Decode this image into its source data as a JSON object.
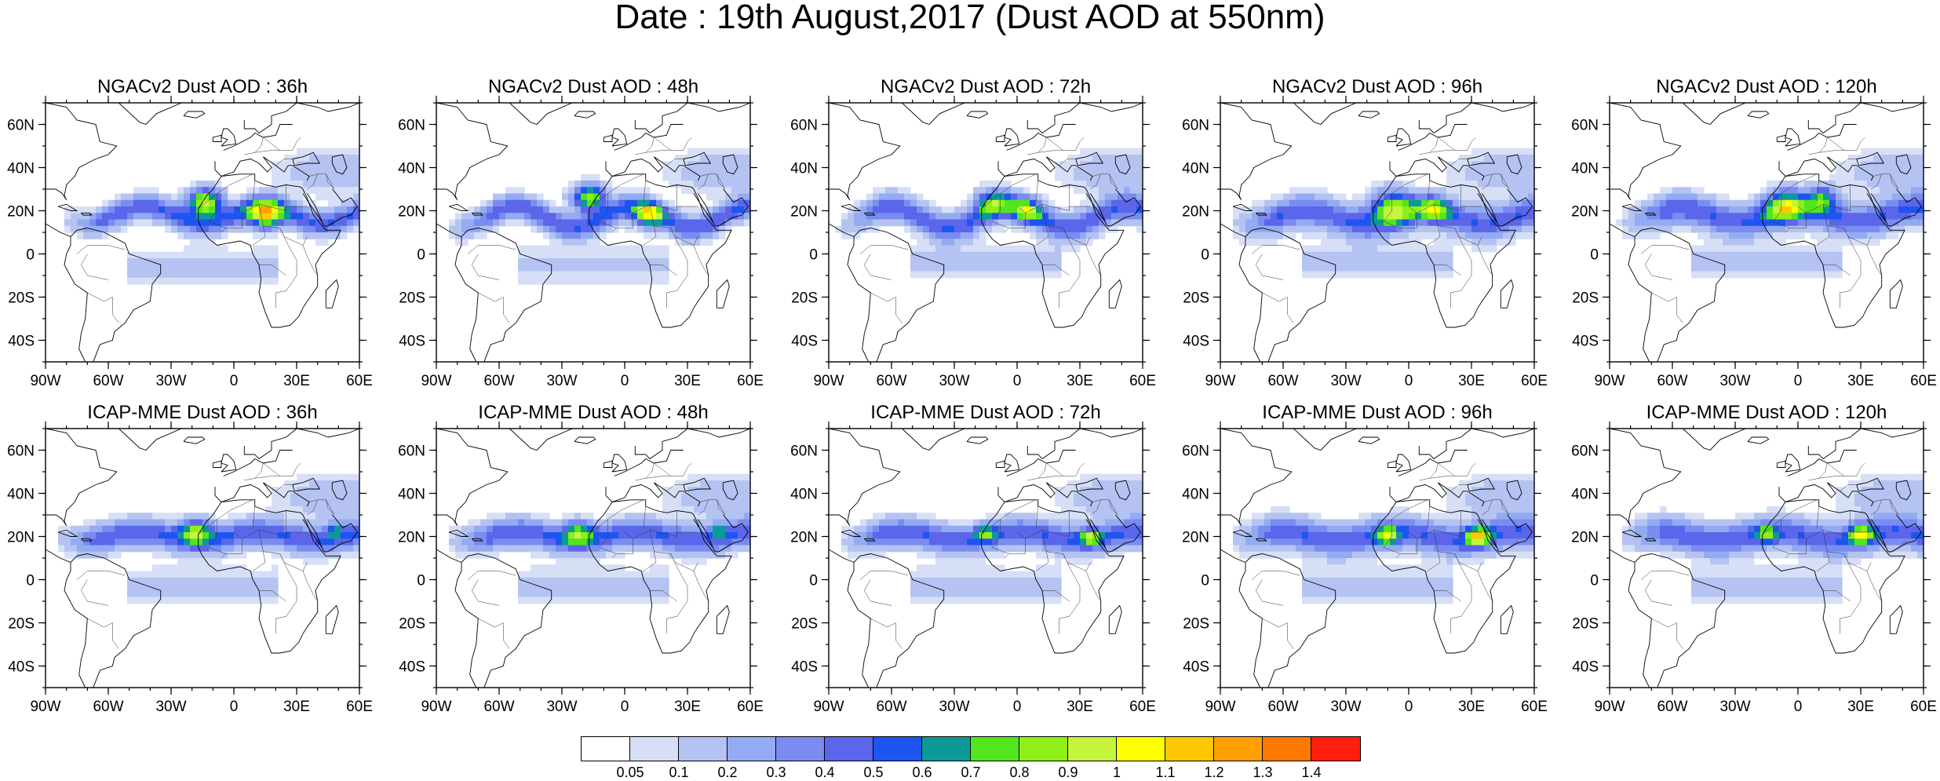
{
  "title": "Date : 19th August,2017 (Dust AOD at 550nm)",
  "map": {
    "lon_range": [
      -90,
      60
    ],
    "lat_range": [
      -50,
      70
    ],
    "x_ticks": [
      {
        "lon": -90,
        "label": "90W"
      },
      {
        "lon": -60,
        "label": "60W"
      },
      {
        "lon": -30,
        "label": "30W"
      },
      {
        "lon": 0,
        "label": "0"
      },
      {
        "lon": 30,
        "label": "30E"
      },
      {
        "lon": 60,
        "label": "60E"
      }
    ],
    "y_ticks": [
      {
        "lat": 60,
        "label": "60N"
      },
      {
        "lat": 40,
        "label": "40N"
      },
      {
        "lat": 20,
        "label": "20N"
      },
      {
        "lat": 0,
        "label": "0"
      },
      {
        "lat": -20,
        "label": "20S"
      },
      {
        "lat": -40,
        "label": "40S"
      }
    ],
    "field": "Dust AOD",
    "wavelength": "550nm",
    "projection": "cylindrical equidistant"
  },
  "panels": [
    {
      "title": "NGACv2 Dust AOD : 36h",
      "model": "NGACv2",
      "forecast_hour": 36,
      "row": 0,
      "col": 0,
      "band": {
        "lat": 18,
        "amp": 4,
        "width": 14,
        "phase": 0,
        "lon_start": -85
      },
      "south": 6,
      "hotspots": [
        {
          "lon": -14,
          "lat": 24,
          "r": 10,
          "level": 1.4
        },
        {
          "lon": 15,
          "lat": 18,
          "r": 10,
          "level": 1.4
        }
      ]
    },
    {
      "title": "NGACv2 Dust AOD : 48h",
      "model": "NGACv2",
      "forecast_hour": 48,
      "row": 0,
      "col": 1,
      "band": {
        "lat": 17,
        "amp": 5,
        "width": 14,
        "phase": 1.1,
        "lon_start": -88
      },
      "south": 5,
      "hotspots": [
        {
          "lon": -17,
          "lat": 26,
          "r": 10,
          "level": 1.3
        },
        {
          "lon": 11,
          "lat": 18,
          "r": 9,
          "level": 1.2
        }
      ]
    },
    {
      "title": "NGACv2 Dust AOD : 72h",
      "model": "NGACv2",
      "forecast_hour": 72,
      "row": 0,
      "col": 2,
      "band": {
        "lat": 17,
        "amp": 5,
        "width": 16,
        "phase": 2.0,
        "lon_start": -88
      },
      "south": 4,
      "hotspots": [
        {
          "lon": -12,
          "lat": 24,
          "r": 10,
          "level": 1.0
        },
        {
          "lon": 5,
          "lat": 20,
          "r": 9,
          "level": 1.0
        }
      ]
    },
    {
      "title": "NGACv2 Dust AOD : 96h",
      "model": "NGACv2",
      "forecast_hour": 96,
      "row": 0,
      "col": 3,
      "band": {
        "lat": 17,
        "amp": 3,
        "width": 18,
        "phase": 0.7,
        "lon_start": -88
      },
      "south": 4,
      "hotspots": [
        {
          "lon": -8,
          "lat": 22,
          "r": 13,
          "level": 1.1
        },
        {
          "lon": 12,
          "lat": 21,
          "r": 9,
          "level": 1.0
        }
      ]
    },
    {
      "title": "NGACv2 Dust AOD : 120h",
      "model": "NGACv2",
      "forecast_hour": 120,
      "row": 0,
      "col": 4,
      "band": {
        "lat": 18,
        "amp": 3,
        "width": 18,
        "phase": 1.5,
        "lon_start": -88
      },
      "south": 4,
      "hotspots": [
        {
          "lon": -6,
          "lat": 22,
          "r": 12,
          "level": 1.1
        },
        {
          "lon": 12,
          "lat": 26,
          "r": 9,
          "level": 1.0
        }
      ]
    },
    {
      "title": "ICAP-MME Dust AOD : 36h",
      "model": "ICAP-MME",
      "forecast_hour": 36,
      "row": 1,
      "col": 0,
      "band": {
        "lat": 20,
        "amp": 2,
        "width": 16,
        "phase": 0.3,
        "lon_start": -88
      },
      "south": 3,
      "hotspots": [
        {
          "lon": -18,
          "lat": 23,
          "r": 9,
          "level": 1.1
        },
        {
          "lon": 48,
          "lat": 23,
          "r": 5,
          "level": 0.8
        }
      ]
    },
    {
      "title": "ICAP-MME Dust AOD : 48h",
      "model": "ICAP-MME",
      "forecast_hour": 48,
      "row": 1,
      "col": 1,
      "band": {
        "lat": 20,
        "amp": 2,
        "width": 16,
        "phase": 0.9,
        "lon_start": -88
      },
      "south": 3,
      "hotspots": [
        {
          "lon": -22,
          "lat": 22,
          "r": 9,
          "level": 1.0
        },
        {
          "lon": 45,
          "lat": 23,
          "r": 5,
          "level": 0.8
        }
      ]
    },
    {
      "title": "ICAP-MME Dust AOD : 72h",
      "model": "ICAP-MME",
      "forecast_hour": 72,
      "row": 1,
      "col": 2,
      "band": {
        "lat": 20,
        "amp": 2,
        "width": 16,
        "phase": 1.4,
        "lon_start": -88
      },
      "south": 3,
      "hotspots": [
        {
          "lon": -15,
          "lat": 22,
          "r": 6,
          "level": 0.9
        },
        {
          "lon": 35,
          "lat": 20,
          "r": 6,
          "level": 1.0
        }
      ]
    },
    {
      "title": "ICAP-MME Dust AOD : 96h",
      "model": "ICAP-MME",
      "forecast_hour": 96,
      "row": 1,
      "col": 3,
      "band": {
        "lat": 20,
        "amp": 2,
        "width": 18,
        "phase": 2.1,
        "lon_start": -88
      },
      "south": 3,
      "hotspots": [
        {
          "lon": -10,
          "lat": 20,
          "r": 7,
          "level": 1.0
        },
        {
          "lon": 33,
          "lat": 20,
          "r": 7,
          "level": 1.2
        }
      ]
    },
    {
      "title": "ICAP-MME Dust AOD : 120h",
      "model": "ICAP-MME",
      "forecast_hour": 120,
      "row": 1,
      "col": 4,
      "band": {
        "lat": 20,
        "amp": 2,
        "width": 18,
        "phase": 2.7,
        "lon_start": -88
      },
      "south": 3,
      "hotspots": [
        {
          "lon": -15,
          "lat": 21,
          "r": 6,
          "level": 0.9
        },
        {
          "lon": 30,
          "lat": 21,
          "r": 7,
          "level": 1.1
        }
      ]
    }
  ],
  "colorbar": {
    "colors": [
      "#ffffff",
      "#d7dff7",
      "#b5c3f2",
      "#93abf2",
      "#7a8cf0",
      "#5b66ea",
      "#1e55f0",
      "#0c9a98",
      "#52e61c",
      "#8ef016",
      "#c4f53c",
      "#ffff00",
      "#ffc800",
      "#ffa000",
      "#ff7800",
      "#ff1e0f"
    ],
    "labels": [
      "0.05",
      "0.1",
      "0.2",
      "0.3",
      "0.4",
      "0.5",
      "0.6",
      "0.7",
      "0.8",
      "0.9",
      "1",
      "1.1",
      "1.2",
      "1.3",
      "1.4"
    ],
    "levels": [
      0.05,
      0.1,
      0.2,
      0.3,
      0.4,
      0.5,
      0.6,
      0.7,
      0.8,
      0.9,
      1.0,
      1.1,
      1.2,
      1.3,
      1.4
    ]
  }
}
